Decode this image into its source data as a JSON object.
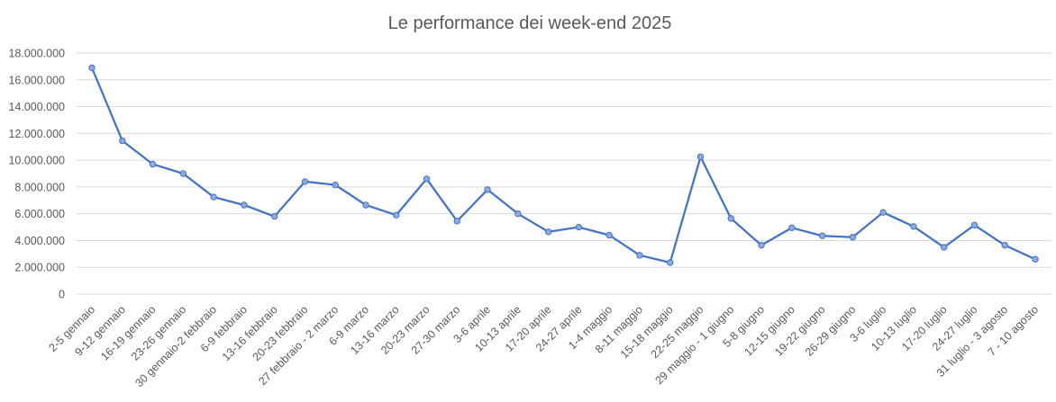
{
  "chart_data": {
    "type": "line",
    "title": "Le performance dei week-end 2025",
    "xlabel": "",
    "ylabel": "",
    "ylim": [
      0,
      18000000
    ],
    "yticks": [
      {
        "value": 0,
        "label": "0"
      },
      {
        "value": 2000000,
        "label": "2.000.000"
      },
      {
        "value": 4000000,
        "label": "4.000.000"
      },
      {
        "value": 6000000,
        "label": "6.000.000"
      },
      {
        "value": 8000000,
        "label": "8.000.000"
      },
      {
        "value": 10000000,
        "label": "10.000.000"
      },
      {
        "value": 12000000,
        "label": "12.000.000"
      },
      {
        "value": 14000000,
        "label": "14.000.000"
      },
      {
        "value": 16000000,
        "label": "16.000.000"
      },
      {
        "value": 18000000,
        "label": "18.000.000"
      }
    ],
    "grid": true,
    "legend": "none",
    "colors": {
      "line": "#4472c4",
      "marker_fill": "#8eaadb",
      "grid": "#d9d9d9",
      "text": "#595959"
    },
    "categories": [
      "2-5 gennaio",
      "9-12 gennaio",
      "16-19 gennaio",
      "23-26 gennaio",
      "30 gennaio-2 febbraio",
      "6-9 febbraio",
      "13-16 febbraio",
      "20-23 febbraio",
      "27 febbraio - 2 marzo",
      "6-9 marzo",
      "13-16 marzo",
      "20-23 marzo",
      "27-30 marzo",
      "3-6 aprile",
      "10-13 aprile",
      "17-20 aprile",
      "24-27 aprile",
      "1-4 maggio",
      "8-11 maggio",
      "15-18 maggio",
      "22-25 maggio",
      "29 maggio - 1 giugno",
      "5-8 giugno",
      "12-15 giugno",
      "19-22 giugno",
      "26-29 giugno",
      "3-6 luglio",
      "10-13 luglio",
      "17-20 luglio",
      "24-27 luglio",
      "31 luglio - 3 agosto",
      "7 - 10 agosto"
    ],
    "series": [
      {
        "values": [
          16900000,
          11450000,
          9700000,
          9000000,
          7250000,
          6650000,
          5800000,
          8400000,
          8150000,
          6650000,
          5900000,
          8600000,
          5450000,
          7800000,
          6000000,
          4650000,
          5000000,
          4400000,
          2900000,
          2350000,
          10250000,
          5650000,
          3650000,
          4950000,
          4350000,
          4250000,
          6100000,
          5050000,
          3500000,
          5150000,
          3650000,
          2600000
        ]
      }
    ]
  }
}
